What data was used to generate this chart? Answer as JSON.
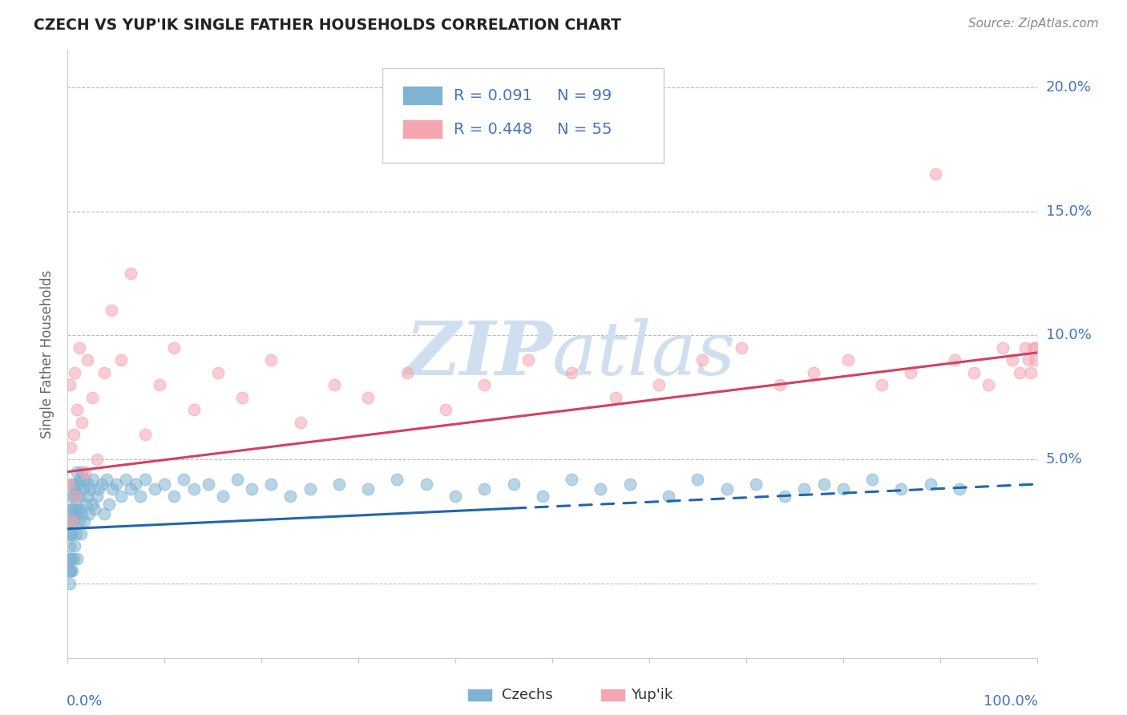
{
  "title": "CZECH VS YUP'IK SINGLE FATHER HOUSEHOLDS CORRELATION CHART",
  "source": "Source: ZipAtlas.com",
  "ylabel": "Single Father Households",
  "legend_czechs": "Czechs",
  "legend_yupik": "Yup'ik",
  "legend_r_czech": "R = 0.091",
  "legend_n_czech": "N = 99",
  "legend_r_yupik": "R = 0.448",
  "legend_n_yupik": "N = 55",
  "ytick_labels": [
    "",
    "5.0%",
    "10.0%",
    "15.0%",
    "20.0%"
  ],
  "ytick_values": [
    0.0,
    0.05,
    0.1,
    0.15,
    0.2
  ],
  "color_czech": "#7fb3d3",
  "color_yupik": "#f4a5b0",
  "color_czech_line": "#2266aa",
  "color_yupik_line": "#d44060",
  "color_text_blue": "#4472c4",
  "background_color": "#ffffff",
  "watermark_color": "#d0dff0",
  "xlim": [
    0.0,
    1.0
  ],
  "ylim": [
    -0.03,
    0.215
  ],
  "czechs_x": [
    0.001,
    0.001,
    0.001,
    0.002,
    0.002,
    0.002,
    0.002,
    0.003,
    0.003,
    0.003,
    0.003,
    0.004,
    0.004,
    0.004,
    0.005,
    0.005,
    0.005,
    0.005,
    0.006,
    0.006,
    0.006,
    0.007,
    0.007,
    0.007,
    0.008,
    0.008,
    0.009,
    0.009,
    0.01,
    0.01,
    0.01,
    0.011,
    0.012,
    0.012,
    0.013,
    0.013,
    0.014,
    0.015,
    0.015,
    0.016,
    0.017,
    0.018,
    0.019,
    0.02,
    0.021,
    0.022,
    0.023,
    0.025,
    0.026,
    0.028,
    0.03,
    0.032,
    0.035,
    0.038,
    0.04,
    0.043,
    0.046,
    0.05,
    0.055,
    0.06,
    0.065,
    0.07,
    0.075,
    0.08,
    0.09,
    0.1,
    0.11,
    0.12,
    0.13,
    0.145,
    0.16,
    0.175,
    0.19,
    0.21,
    0.23,
    0.25,
    0.28,
    0.31,
    0.34,
    0.37,
    0.4,
    0.43,
    0.46,
    0.49,
    0.52,
    0.55,
    0.58,
    0.62,
    0.65,
    0.68,
    0.71,
    0.74,
    0.76,
    0.78,
    0.8,
    0.83,
    0.86,
    0.89,
    0.92
  ],
  "czechs_y": [
    0.02,
    0.01,
    0.005,
    0.025,
    0.015,
    0.005,
    0.0,
    0.03,
    0.02,
    0.01,
    0.005,
    0.035,
    0.025,
    0.01,
    0.04,
    0.03,
    0.02,
    0.005,
    0.035,
    0.025,
    0.01,
    0.04,
    0.03,
    0.015,
    0.038,
    0.028,
    0.035,
    0.02,
    0.045,
    0.03,
    0.01,
    0.04,
    0.035,
    0.025,
    0.042,
    0.03,
    0.02,
    0.045,
    0.028,
    0.038,
    0.025,
    0.042,
    0.032,
    0.035,
    0.04,
    0.028,
    0.038,
    0.032,
    0.042,
    0.03,
    0.035,
    0.038,
    0.04,
    0.028,
    0.042,
    0.032,
    0.038,
    0.04,
    0.035,
    0.042,
    0.038,
    0.04,
    0.035,
    0.042,
    0.038,
    0.04,
    0.035,
    0.042,
    0.038,
    0.04,
    0.035,
    0.042,
    0.038,
    0.04,
    0.035,
    0.038,
    0.04,
    0.038,
    0.042,
    0.04,
    0.035,
    0.038,
    0.04,
    0.035,
    0.042,
    0.038,
    0.04,
    0.035,
    0.042,
    0.038,
    0.04,
    0.035,
    0.038,
    0.04,
    0.038,
    0.042,
    0.038,
    0.04,
    0.038
  ],
  "yupik_x": [
    0.001,
    0.002,
    0.003,
    0.005,
    0.006,
    0.007,
    0.008,
    0.01,
    0.012,
    0.015,
    0.018,
    0.02,
    0.025,
    0.03,
    0.038,
    0.045,
    0.055,
    0.065,
    0.08,
    0.095,
    0.11,
    0.13,
    0.155,
    0.18,
    0.21,
    0.24,
    0.275,
    0.31,
    0.35,
    0.39,
    0.43,
    0.475,
    0.52,
    0.565,
    0.61,
    0.655,
    0.695,
    0.735,
    0.77,
    0.805,
    0.84,
    0.87,
    0.895,
    0.915,
    0.935,
    0.95,
    0.965,
    0.975,
    0.982,
    0.988,
    0.991,
    0.994,
    0.996,
    0.998,
    0.999
  ],
  "yupik_y": [
    0.04,
    0.08,
    0.055,
    0.025,
    0.06,
    0.085,
    0.035,
    0.07,
    0.095,
    0.065,
    0.045,
    0.09,
    0.075,
    0.05,
    0.085,
    0.11,
    0.09,
    0.125,
    0.06,
    0.08,
    0.095,
    0.07,
    0.085,
    0.075,
    0.09,
    0.065,
    0.08,
    0.075,
    0.085,
    0.07,
    0.08,
    0.09,
    0.085,
    0.075,
    0.08,
    0.09,
    0.095,
    0.08,
    0.085,
    0.09,
    0.08,
    0.085,
    0.165,
    0.09,
    0.085,
    0.08,
    0.095,
    0.09,
    0.085,
    0.095,
    0.09,
    0.085,
    0.095,
    0.09,
    0.095
  ]
}
